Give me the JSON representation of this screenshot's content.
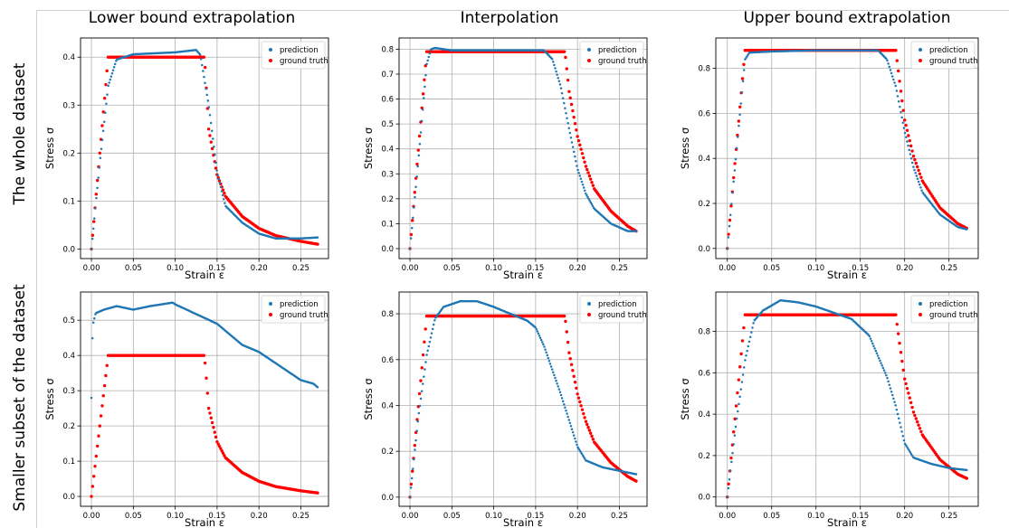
{
  "column_titles": [
    "Lower bound extrapolation",
    "Interpolation",
    "Upper bound extrapolation"
  ],
  "row_titles": [
    "The whole dataset",
    "Smaller subset of the dataset"
  ],
  "colors": {
    "prediction": "#1f77b4",
    "ground_truth": "#ff0000",
    "grid": "#b0b0b0"
  },
  "chart_data": [
    {
      "type": "scatter",
      "xlabel": "Strain ε",
      "ylabel": "Stress σ",
      "xlim": [
        -0.013,
        0.283
      ],
      "ylim": [
        -0.02,
        0.44
      ],
      "xticks": [
        0.0,
        0.05,
        0.1,
        0.15,
        0.2,
        0.25
      ],
      "xtick_labels": [
        "0.00",
        "0.05",
        "0.10",
        "0.15",
        "0.20",
        "0.25"
      ],
      "yticks": [
        0.0,
        0.1,
        0.2,
        0.3,
        0.4
      ],
      "ytick_labels": [
        "0.0",
        "0.1",
        "0.2",
        "0.3",
        "0.4"
      ],
      "grid": true,
      "legend": "top-right",
      "series": [
        {
          "name": "prediction",
          "points": [
            [
              0,
              0
            ],
            [
              0.01,
              0.18
            ],
            [
              0.02,
              0.34
            ],
            [
              0.03,
              0.395
            ],
            [
              0.05,
              0.406
            ],
            [
              0.1,
              0.41
            ],
            [
              0.125,
              0.415
            ],
            [
              0.13,
              0.405
            ],
            [
              0.14,
              0.3
            ],
            [
              0.15,
              0.16
            ],
            [
              0.16,
              0.09
            ],
            [
              0.18,
              0.055
            ],
            [
              0.2,
              0.032
            ],
            [
              0.22,
              0.022
            ],
            [
              0.25,
              0.022
            ],
            [
              0.27,
              0.024
            ]
          ]
        },
        {
          "name": "ground truth",
          "points": [
            [
              0,
              0
            ],
            [
              0.02,
              0.4
            ],
            [
              0.135,
              0.4
            ],
            [
              0.14,
              0.25
            ],
            [
              0.15,
              0.155
            ],
            [
              0.16,
              0.11
            ],
            [
              0.18,
              0.068
            ],
            [
              0.2,
              0.043
            ],
            [
              0.22,
              0.028
            ],
            [
              0.25,
              0.016
            ],
            [
              0.27,
              0.01
            ]
          ]
        }
      ]
    },
    {
      "type": "scatter",
      "xlabel": "Strain ε",
      "ylabel": "Stress σ",
      "xlim": [
        -0.013,
        0.283
      ],
      "ylim": [
        -0.04,
        0.845
      ],
      "xticks": [
        0.0,
        0.05,
        0.1,
        0.15,
        0.2,
        0.25
      ],
      "xtick_labels": [
        "0.00",
        "0.05",
        "0.10",
        "0.15",
        "0.20",
        "0.25"
      ],
      "yticks": [
        0.0,
        0.1,
        0.2,
        0.3,
        0.4,
        0.5,
        0.6,
        0.7,
        0.8
      ],
      "ytick_labels": [
        "0.0",
        "0.1",
        "0.2",
        "0.3",
        "0.4",
        "0.5",
        "0.6",
        "0.7",
        "0.8"
      ],
      "grid": true,
      "legend": "top-right",
      "series": [
        {
          "name": "prediction",
          "points": [
            [
              0,
              0
            ],
            [
              0.01,
              0.35
            ],
            [
              0.02,
              0.74
            ],
            [
              0.025,
              0.8
            ],
            [
              0.03,
              0.805
            ],
            [
              0.05,
              0.795
            ],
            [
              0.1,
              0.795
            ],
            [
              0.16,
              0.795
            ],
            [
              0.17,
              0.76
            ],
            [
              0.18,
              0.65
            ],
            [
              0.19,
              0.48
            ],
            [
              0.2,
              0.32
            ],
            [
              0.21,
              0.22
            ],
            [
              0.22,
              0.16
            ],
            [
              0.24,
              0.1
            ],
            [
              0.26,
              0.07
            ],
            [
              0.27,
              0.07
            ]
          ]
        },
        {
          "name": "ground truth",
          "points": [
            [
              0,
              0
            ],
            [
              0.02,
              0.79
            ],
            [
              0.185,
              0.79
            ],
            [
              0.19,
              0.63
            ],
            [
              0.2,
              0.45
            ],
            [
              0.21,
              0.33
            ],
            [
              0.22,
              0.24
            ],
            [
              0.24,
              0.15
            ],
            [
              0.26,
              0.09
            ],
            [
              0.27,
              0.07
            ]
          ]
        }
      ]
    },
    {
      "type": "scatter",
      "xlabel": "Strain ε",
      "ylabel": "Stress σ",
      "xlim": [
        -0.013,
        0.283
      ],
      "ylim": [
        -0.045,
        0.935
      ],
      "xticks": [
        0.0,
        0.05,
        0.1,
        0.15,
        0.2,
        0.25
      ],
      "xtick_labels": [
        "0.00",
        "0.05",
        "0.10",
        "0.15",
        "0.20",
        "0.25"
      ],
      "yticks": [
        0.0,
        0.2,
        0.4,
        0.6,
        0.8
      ],
      "ytick_labels": [
        "0.0",
        "0.2",
        "0.4",
        "0.6",
        "0.8"
      ],
      "grid": true,
      "legend": "top-right",
      "series": [
        {
          "name": "prediction",
          "points": [
            [
              0,
              0
            ],
            [
              0.01,
              0.42
            ],
            [
              0.02,
              0.84
            ],
            [
              0.025,
              0.87
            ],
            [
              0.05,
              0.875
            ],
            [
              0.1,
              0.88
            ],
            [
              0.17,
              0.88
            ],
            [
              0.18,
              0.84
            ],
            [
              0.19,
              0.72
            ],
            [
              0.2,
              0.52
            ],
            [
              0.21,
              0.36
            ],
            [
              0.22,
              0.25
            ],
            [
              0.24,
              0.15
            ],
            [
              0.26,
              0.095
            ],
            [
              0.27,
              0.085
            ]
          ]
        },
        {
          "name": "ground truth",
          "points": [
            [
              0,
              0
            ],
            [
              0.02,
              0.88
            ],
            [
              0.19,
              0.88
            ],
            [
              0.195,
              0.72
            ],
            [
              0.2,
              0.57
            ],
            [
              0.21,
              0.41
            ],
            [
              0.22,
              0.3
            ],
            [
              0.24,
              0.18
            ],
            [
              0.26,
              0.11
            ],
            [
              0.27,
              0.09
            ]
          ]
        }
      ]
    },
    {
      "type": "scatter",
      "xlabel": "Strain ε",
      "ylabel": "Stress σ",
      "xlim": [
        -0.013,
        0.283
      ],
      "ylim": [
        -0.028,
        0.58
      ],
      "xticks": [
        0.0,
        0.05,
        0.1,
        0.15,
        0.2,
        0.25
      ],
      "xtick_labels": [
        "0.00",
        "0.05",
        "0.10",
        "0.15",
        "0.20",
        "0.25"
      ],
      "yticks": [
        0.0,
        0.1,
        0.2,
        0.3,
        0.4,
        0.5
      ],
      "ytick_labels": [
        "0.0",
        "0.1",
        "0.2",
        "0.3",
        "0.4",
        "0.5"
      ],
      "grid": true,
      "legend": "top-right",
      "series": [
        {
          "name": "prediction",
          "points": [
            [
              0,
              0.28
            ],
            [
              0.001,
              0.44
            ],
            [
              0.002,
              0.49
            ],
            [
              0.005,
              0.52
            ],
            [
              0.015,
              0.53
            ],
            [
              0.03,
              0.54
            ],
            [
              0.04,
              0.535
            ],
            [
              0.05,
              0.53
            ],
            [
              0.07,
              0.54
            ],
            [
              0.097,
              0.55
            ],
            [
              0.1,
              0.545
            ],
            [
              0.15,
              0.49
            ],
            [
              0.18,
              0.43
            ],
            [
              0.2,
              0.41
            ],
            [
              0.25,
              0.33
            ],
            [
              0.265,
              0.32
            ],
            [
              0.27,
              0.31
            ]
          ]
        },
        {
          "name": "ground truth",
          "points": [
            [
              0,
              0
            ],
            [
              0.02,
              0.4
            ],
            [
              0.135,
              0.4
            ],
            [
              0.14,
              0.25
            ],
            [
              0.15,
              0.155
            ],
            [
              0.16,
              0.11
            ],
            [
              0.18,
              0.068
            ],
            [
              0.2,
              0.043
            ],
            [
              0.22,
              0.028
            ],
            [
              0.25,
              0.016
            ],
            [
              0.27,
              0.01
            ]
          ]
        }
      ]
    },
    {
      "type": "scatter",
      "xlabel": "Strain ε",
      "ylabel": "Stress σ",
      "xlim": [
        -0.013,
        0.283
      ],
      "ylim": [
        -0.04,
        0.895
      ],
      "xticks": [
        0.0,
        0.05,
        0.1,
        0.15,
        0.2,
        0.25
      ],
      "xtick_labels": [
        "0.00",
        "0.05",
        "0.10",
        "0.15",
        "0.20",
        "0.25"
      ],
      "yticks": [
        0.0,
        0.2,
        0.4,
        0.6,
        0.8
      ],
      "ytick_labels": [
        "0.0",
        "0.2",
        "0.4",
        "0.6",
        "0.8"
      ],
      "grid": true,
      "legend": "top-right",
      "series": [
        {
          "name": "prediction",
          "points": [
            [
              0,
              0
            ],
            [
              0.01,
              0.35
            ],
            [
              0.02,
              0.62
            ],
            [
              0.03,
              0.78
            ],
            [
              0.04,
              0.83
            ],
            [
              0.06,
              0.855
            ],
            [
              0.08,
              0.855
            ],
            [
              0.1,
              0.83
            ],
            [
              0.12,
              0.8
            ],
            [
              0.14,
              0.77
            ],
            [
              0.15,
              0.74
            ],
            [
              0.16,
              0.66
            ],
            [
              0.18,
              0.45
            ],
            [
              0.2,
              0.22
            ],
            [
              0.21,
              0.16
            ],
            [
              0.23,
              0.13
            ],
            [
              0.25,
              0.115
            ],
            [
              0.27,
              0.1
            ]
          ]
        },
        {
          "name": "ground truth",
          "points": [
            [
              0,
              0
            ],
            [
              0.02,
              0.79
            ],
            [
              0.185,
              0.79
            ],
            [
              0.19,
              0.63
            ],
            [
              0.2,
              0.45
            ],
            [
              0.21,
              0.33
            ],
            [
              0.22,
              0.24
            ],
            [
              0.24,
              0.15
            ],
            [
              0.26,
              0.09
            ],
            [
              0.27,
              0.07
            ]
          ]
        }
      ]
    },
    {
      "type": "scatter",
      "xlabel": "Strain ε",
      "ylabel": "Stress σ",
      "xlim": [
        -0.013,
        0.283
      ],
      "ylim": [
        -0.045,
        0.99
      ],
      "xticks": [
        0.0,
        0.05,
        0.1,
        0.15,
        0.2,
        0.25
      ],
      "xtick_labels": [
        "0.00",
        "0.05",
        "0.10",
        "0.15",
        "0.20",
        "0.25"
      ],
      "yticks": [
        0.0,
        0.2,
        0.4,
        0.6,
        0.8
      ],
      "ytick_labels": [
        "0.0",
        "0.2",
        "0.4",
        "0.6",
        "0.8"
      ],
      "grid": true,
      "legend": "top-right",
      "series": [
        {
          "name": "prediction",
          "points": [
            [
              0,
              0
            ],
            [
              0.01,
              0.36
            ],
            [
              0.02,
              0.66
            ],
            [
              0.03,
              0.85
            ],
            [
              0.04,
              0.9
            ],
            [
              0.06,
              0.95
            ],
            [
              0.08,
              0.94
            ],
            [
              0.1,
              0.92
            ],
            [
              0.12,
              0.89
            ],
            [
              0.14,
              0.86
            ],
            [
              0.16,
              0.78
            ],
            [
              0.18,
              0.58
            ],
            [
              0.19,
              0.44
            ],
            [
              0.2,
              0.26
            ],
            [
              0.21,
              0.19
            ],
            [
              0.23,
              0.16
            ],
            [
              0.25,
              0.14
            ],
            [
              0.27,
              0.13
            ]
          ]
        },
        {
          "name": "ground truth",
          "points": [
            [
              0,
              0
            ],
            [
              0.02,
              0.88
            ],
            [
              0.19,
              0.88
            ],
            [
              0.195,
              0.72
            ],
            [
              0.2,
              0.57
            ],
            [
              0.21,
              0.41
            ],
            [
              0.22,
              0.3
            ],
            [
              0.24,
              0.18
            ],
            [
              0.26,
              0.11
            ],
            [
              0.27,
              0.09
            ]
          ]
        }
      ]
    }
  ]
}
